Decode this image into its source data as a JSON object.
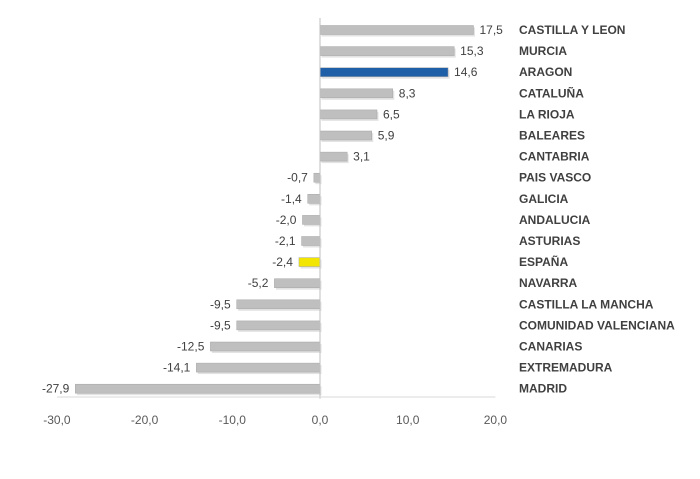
{
  "chart_data": {
    "type": "bar",
    "orientation": "horizontal",
    "categories": [
      "CASTILLA Y LEON",
      "MURCIA",
      "ARAGON",
      "CATALUÑA",
      "LA RIOJA",
      "BALEARES",
      "CANTABRIA",
      "PAIS VASCO",
      "GALICIA",
      "ANDALUCIA",
      "ASTURIAS",
      "ESPAÑA",
      "NAVARRA",
      "CASTILLA LA MANCHA",
      "COMUNIDAD VALENCIANA",
      "CANARIAS",
      "EXTREMADURA",
      "MADRID"
    ],
    "values": [
      17.5,
      15.3,
      14.6,
      8.3,
      6.5,
      5.9,
      3.1,
      -0.7,
      -1.4,
      -2.0,
      -2.1,
      -2.4,
      -5.2,
      -9.5,
      -9.5,
      -12.5,
      -14.1,
      -27.9
    ],
    "value_labels": [
      "17,5",
      "15,3",
      "14,6",
      "8,3",
      "6,5",
      "5,9",
      "3,1",
      "-0,7",
      "-1,4",
      "-2,0",
      "-2,1",
      "-2,4",
      "-5,2",
      "-9,5",
      "-9,5",
      "-12,5",
      "-14,1",
      "-27,9"
    ],
    "bar_colors": [
      "#bfbfbf",
      "#bfbfbf",
      "#1f5fa8",
      "#bfbfbf",
      "#bfbfbf",
      "#bfbfbf",
      "#bfbfbf",
      "#bfbfbf",
      "#bfbfbf",
      "#bfbfbf",
      "#bfbfbf",
      "#f2e600",
      "#bfbfbf",
      "#bfbfbf",
      "#bfbfbf",
      "#bfbfbf",
      "#bfbfbf",
      "#bfbfbf"
    ],
    "xlim": [
      -30,
      20
    ],
    "x_ticks": [
      -30,
      -20,
      -10,
      0,
      10,
      20
    ],
    "x_tick_labels": [
      "-30,0",
      "-20,0",
      "-10,0",
      "0,0",
      "10,0",
      "20,0"
    ],
    "title": "",
    "xlabel": "",
    "ylabel": "",
    "grid": false,
    "legend": "none"
  }
}
